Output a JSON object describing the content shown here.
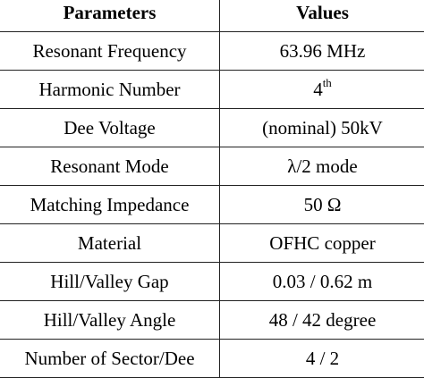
{
  "table": {
    "headers": [
      "Parameters",
      "Values"
    ],
    "rows": [
      {
        "parameter": "Resonant Frequency",
        "value": "63.96 MHz"
      },
      {
        "parameter": "Harmonic Number",
        "value": "4",
        "value_sup": "th"
      },
      {
        "parameter": "Dee Voltage",
        "value": "(nominal) 50kV"
      },
      {
        "parameter": "Resonant Mode",
        "value": "λ/2 mode"
      },
      {
        "parameter": "Matching Impedance",
        "value": "50 Ω"
      },
      {
        "parameter": "Material",
        "value": "OFHC copper"
      },
      {
        "parameter": "Hill/Valley Gap",
        "value": "0.03 / 0.62 m"
      },
      {
        "parameter": "Hill/Valley Angle",
        "value": "48 / 42 degree"
      },
      {
        "parameter": "Number of Sector/Dee",
        "value": "4 / 2"
      }
    ]
  }
}
